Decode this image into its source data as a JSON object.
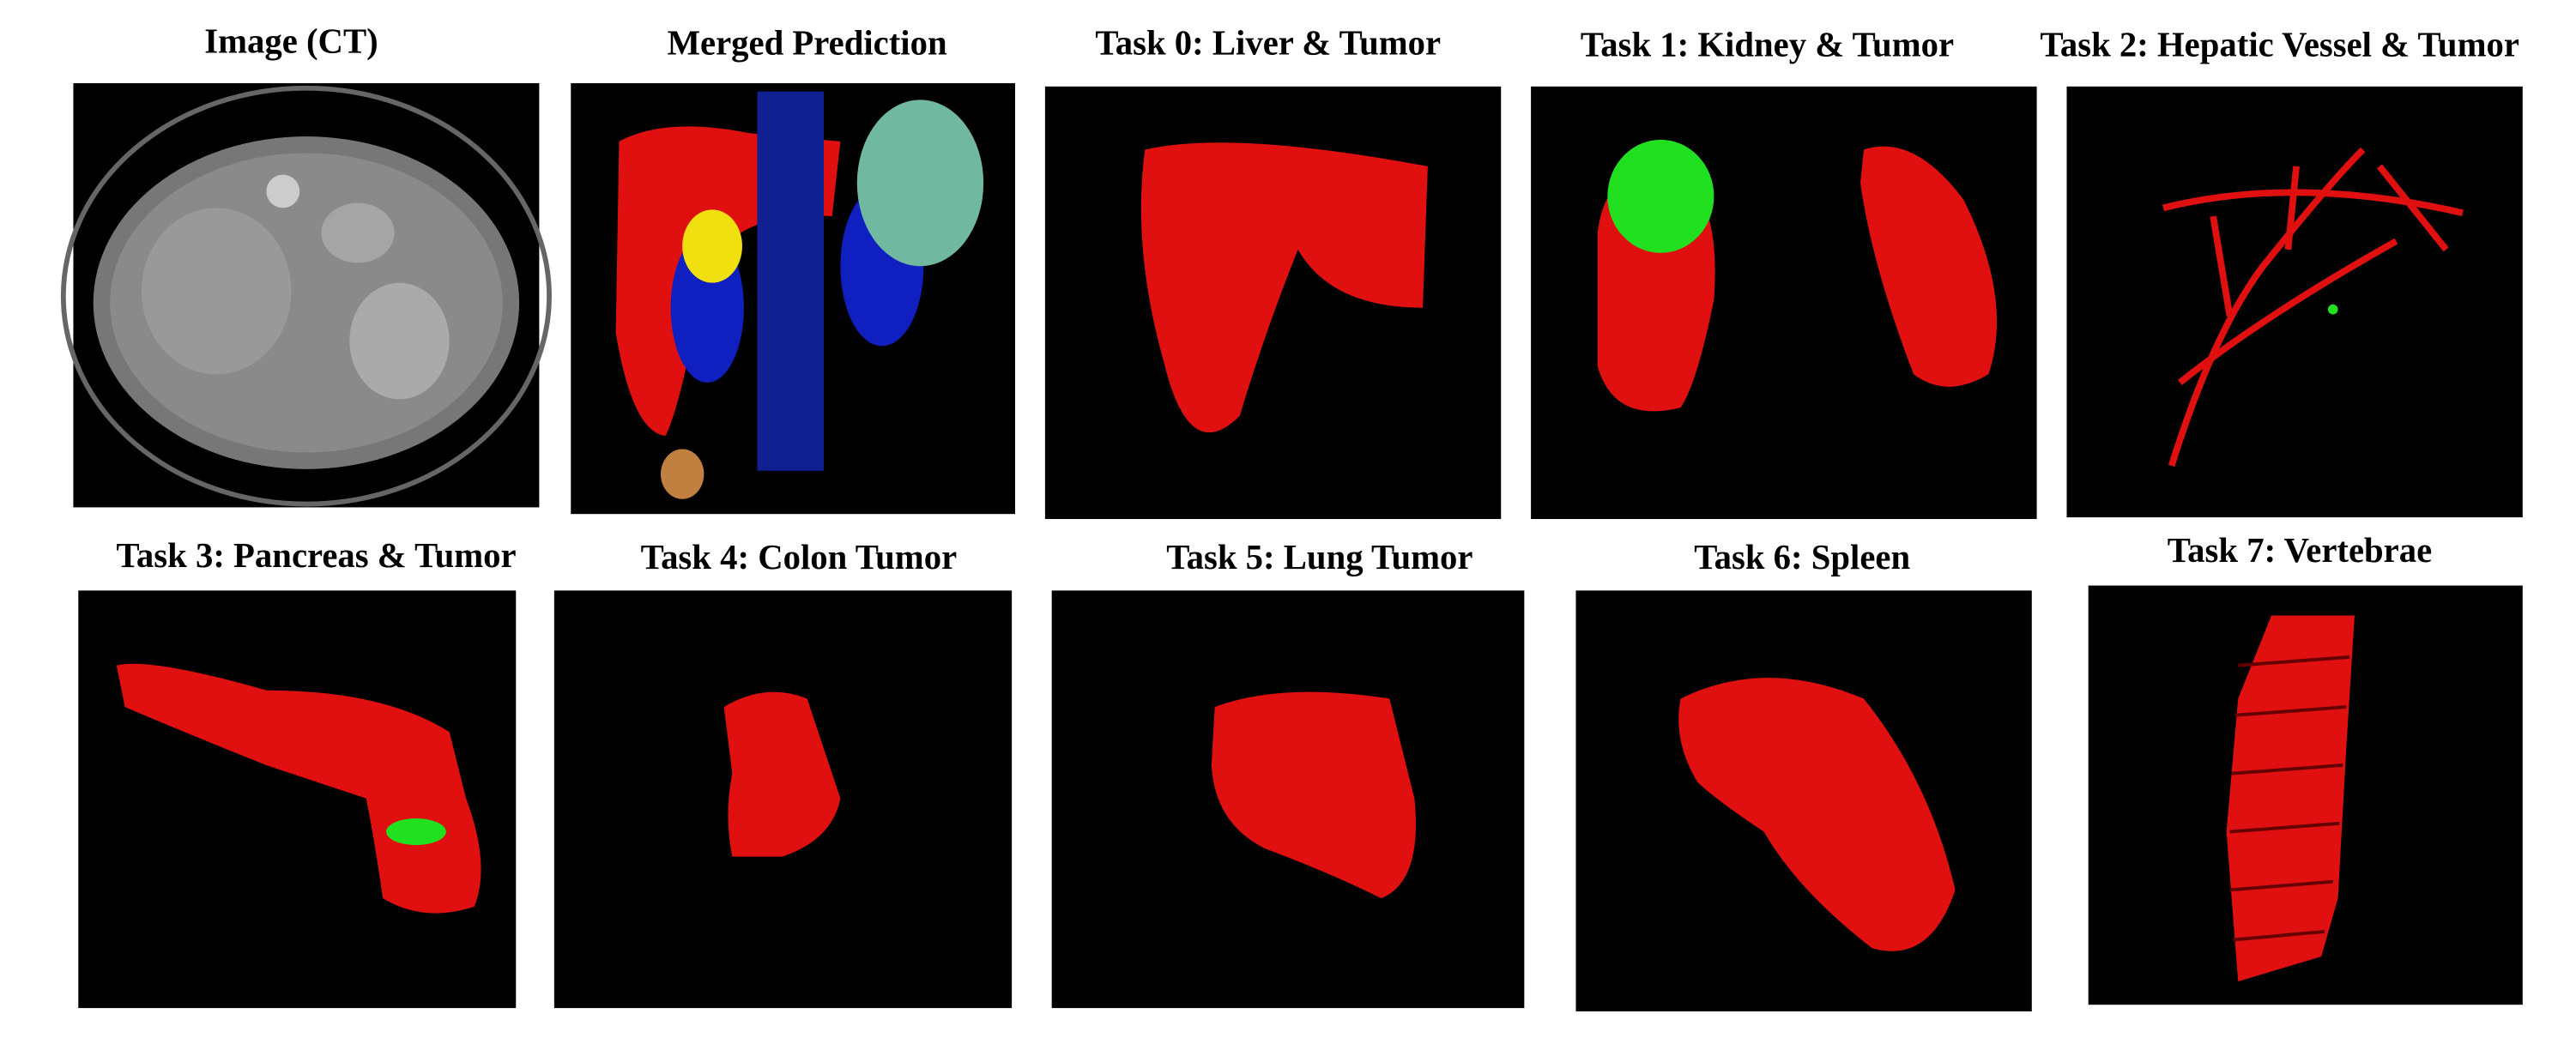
{
  "panels": [
    {
      "title": "Image (CT)"
    },
    {
      "title": "Merged Prediction"
    },
    {
      "title": "Task 0: Liver & Tumor"
    },
    {
      "title": "Task 1: Kidney & Tumor"
    },
    {
      "title": "Task 2: Hepatic Vessel & Tumor"
    },
    {
      "title": "Task 3: Pancreas & Tumor"
    },
    {
      "title": "Task 4: Colon Tumor"
    },
    {
      "title": "Task 5: Lung Tumor"
    },
    {
      "title": "Task 6: Spleen"
    },
    {
      "title": "Task 7: Vertebrae"
    }
  ]
}
